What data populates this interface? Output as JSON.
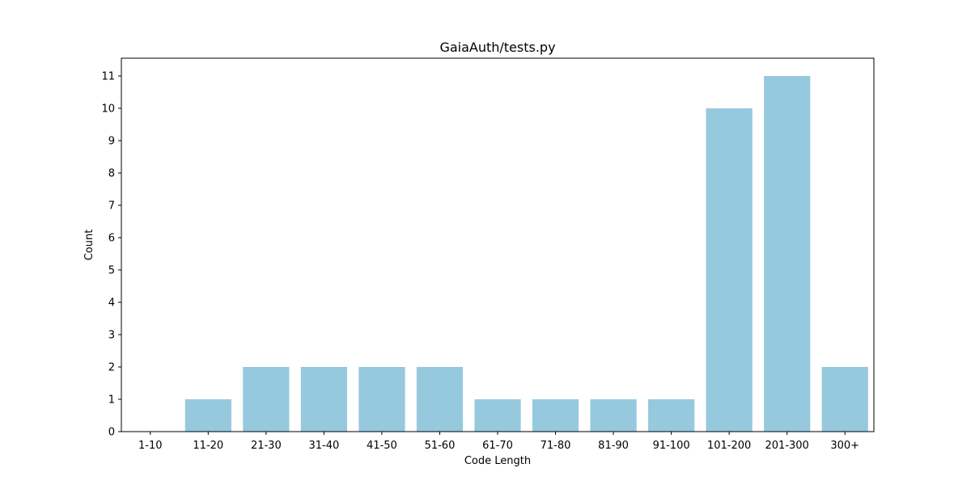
{
  "chart_data": {
    "type": "bar",
    "title": "GaiaAuth/tests.py",
    "xlabel": "Code Length",
    "ylabel": "Count",
    "categories": [
      "1-10",
      "11-20",
      "21-30",
      "31-40",
      "41-50",
      "51-60",
      "61-70",
      "71-80",
      "81-90",
      "91-100",
      "101-200",
      "201-300",
      "300+"
    ],
    "values": [
      0,
      1,
      2,
      2,
      2,
      2,
      1,
      1,
      1,
      1,
      10,
      11,
      2
    ],
    "ylim": [
      0,
      11.55
    ],
    "yticks": [
      0,
      1,
      2,
      3,
      4,
      5,
      6,
      7,
      8,
      9,
      10,
      11
    ],
    "grid": false,
    "bar_color": "#96c9de"
  }
}
